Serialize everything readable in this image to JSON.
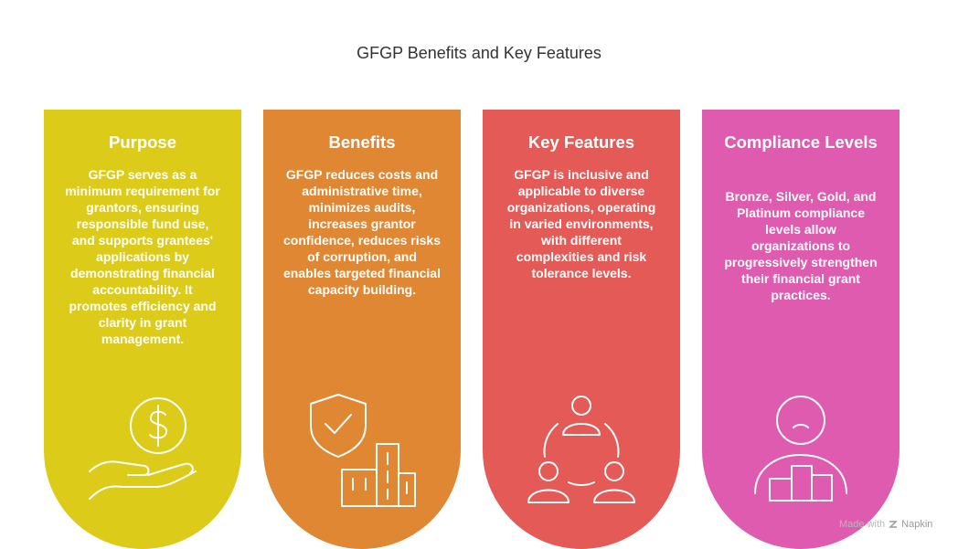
{
  "title": "GFGP Benefits and Key Features",
  "cards": [
    {
      "title": "Purpose",
      "body": "GFGP serves as a minimum requirement for grantors, ensuring responsible fund use, and supports grantees' applications by demonstrating financial accountability. It promotes efficiency and clarity in grant management.",
      "color": "#DDCB1A",
      "icon": "hand-dollar-icon"
    },
    {
      "title": "Benefits",
      "body": "GFGP reduces costs and administrative time, minimizes audits, increases grantor confidence, reduces risks of corruption, and enables targeted financial capacity building.",
      "color": "#E08733",
      "icon": "shield-buildings-icon"
    },
    {
      "title": "Key Features",
      "body": "GFGP is inclusive and applicable to diverse organizations, operating in varied environments, with different complexities and risk tolerance levels.",
      "color": "#E45A57",
      "icon": "group-network-icon"
    },
    {
      "title": "Compliance Levels",
      "body": "Bronze, Silver, Gold, and Platinum compliance levels allow organizations to progressively strengthen their financial grant practices.",
      "color": "#DE5BAF",
      "icon": "person-podium-icon"
    }
  ],
  "watermark": {
    "prefix": "Made with",
    "brand": "Napkin"
  }
}
